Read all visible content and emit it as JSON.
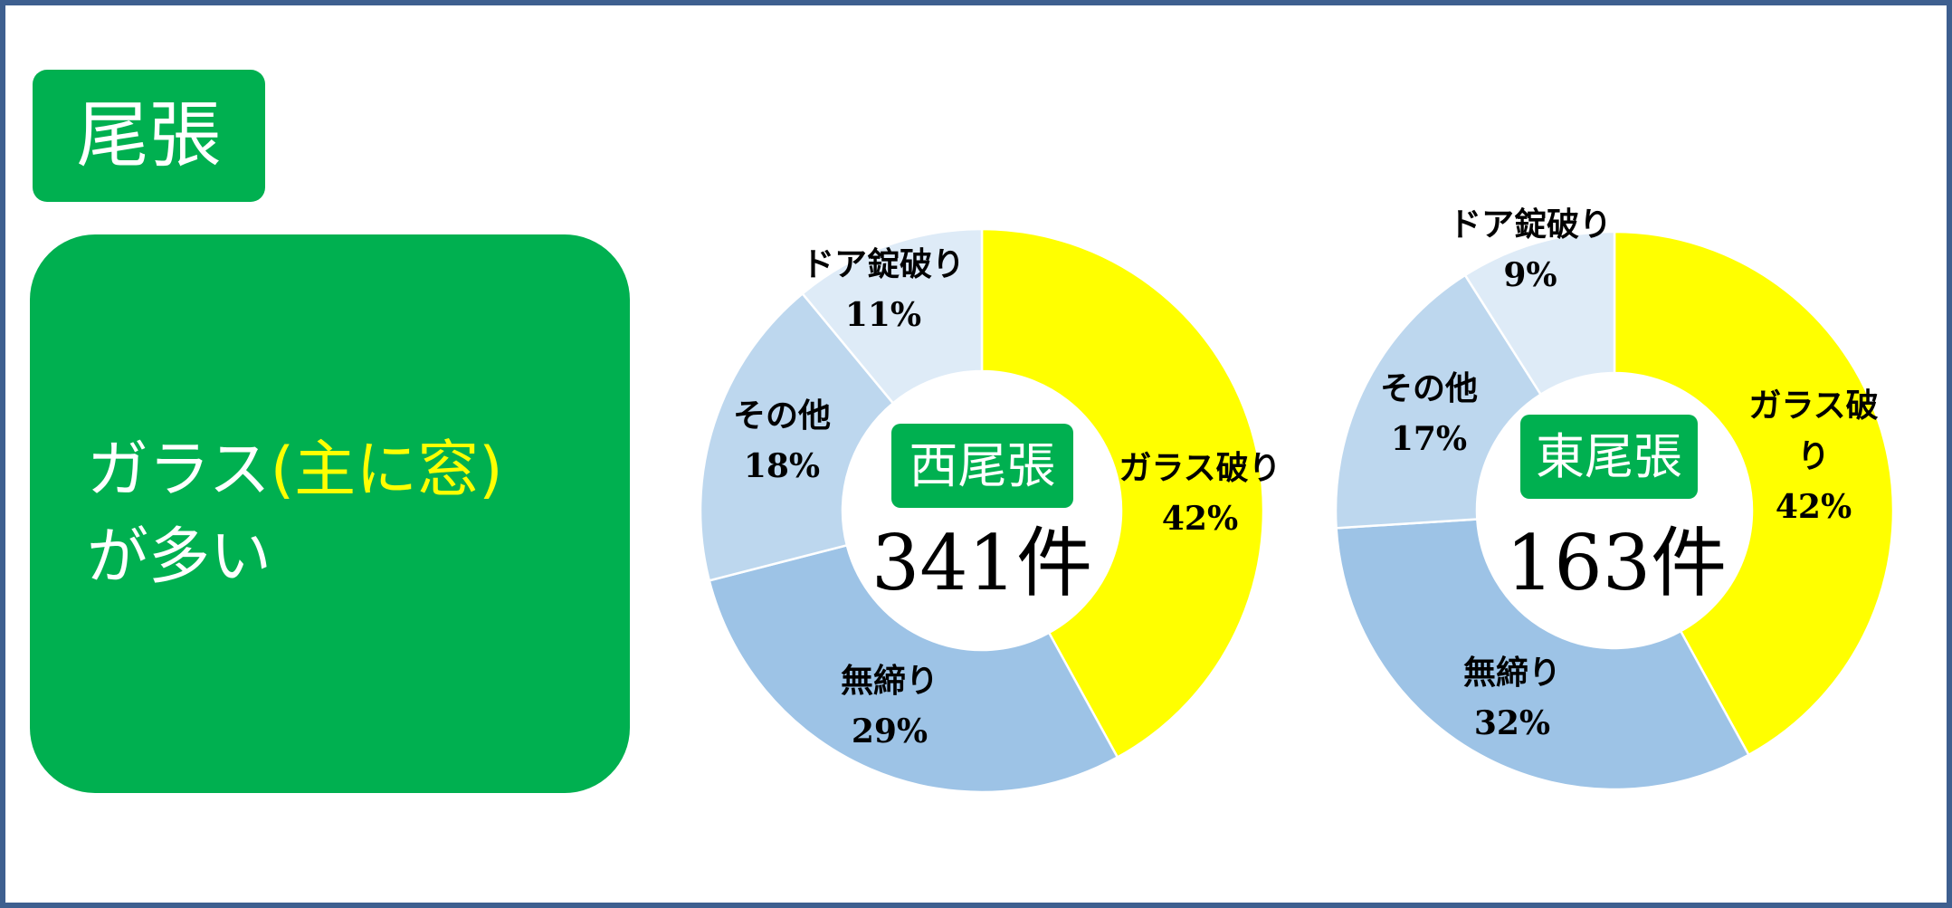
{
  "region": {
    "label": "尾張"
  },
  "summary": {
    "lead": "ガラス",
    "highlight": "(主に窓)",
    "tail": "が多い"
  },
  "colors": {
    "brand_green": "#00b050",
    "highlight_yellow": "#ffff00",
    "frame_border": "#3e5f8f"
  },
  "chart_data": [
    {
      "type": "pie",
      "donut": true,
      "legend": "none",
      "center_label": "西尾張",
      "total_label": "341件",
      "categories": [
        "ガラス破り",
        "無締り",
        "その他",
        "ドア錠破り"
      ],
      "values": [
        42,
        29,
        18,
        11
      ],
      "value_labels": [
        "42%",
        "29%",
        "18%",
        "11%"
      ],
      "colors": [
        "#ffff00",
        "#9dc3e6",
        "#bdd7ee",
        "#deebf7"
      ]
    },
    {
      "type": "pie",
      "donut": true,
      "legend": "none",
      "center_label": "東尾張",
      "total_label": "163件",
      "categories": [
        "ガラス破り",
        "無締り",
        "その他",
        "ドア錠破り"
      ],
      "values": [
        42,
        32,
        17,
        9
      ],
      "value_labels": [
        "42%",
        "32%",
        "17%",
        "9%"
      ],
      "colors": [
        "#ffff00",
        "#9dc3e6",
        "#bdd7ee",
        "#deebf7"
      ]
    }
  ]
}
